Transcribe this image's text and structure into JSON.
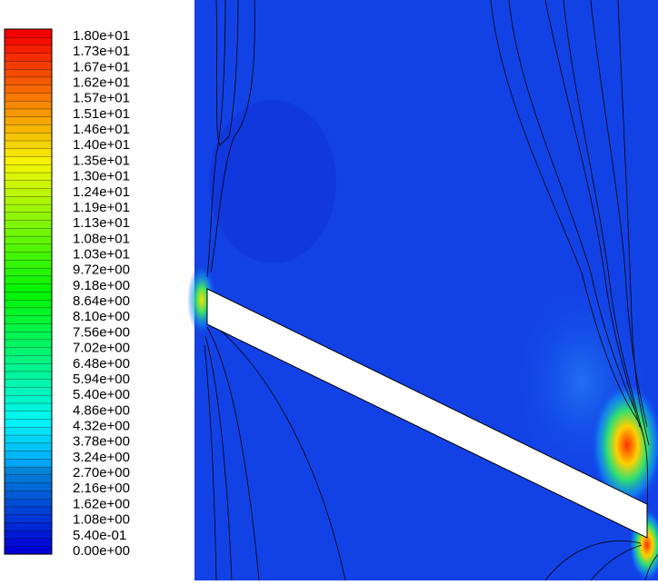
{
  "colorbar": {
    "labels": [
      "1.80e+01",
      "1.73e+01",
      "1.67e+01",
      "1.62e+01",
      "1.57e+01",
      "1.51e+01",
      "1.46e+01",
      "1.40e+01",
      "1.35e+01",
      "1.30e+01",
      "1.24e+01",
      "1.19e+01",
      "1.13e+01",
      "1.08e+01",
      "1.03e+01",
      "9.72e+00",
      "9.18e+00",
      "8.64e+00",
      "8.10e+00",
      "7.56e+00",
      "7.02e+00",
      "6.48e+00",
      "5.94e+00",
      "5.40e+00",
      "4.86e+00",
      "4.32e+00",
      "3.78e+00",
      "3.24e+00",
      "2.70e+00",
      "2.16e+00",
      "1.62e+00",
      "1.08e+00",
      "5.40e-01",
      "0.00e+00"
    ]
  }
}
